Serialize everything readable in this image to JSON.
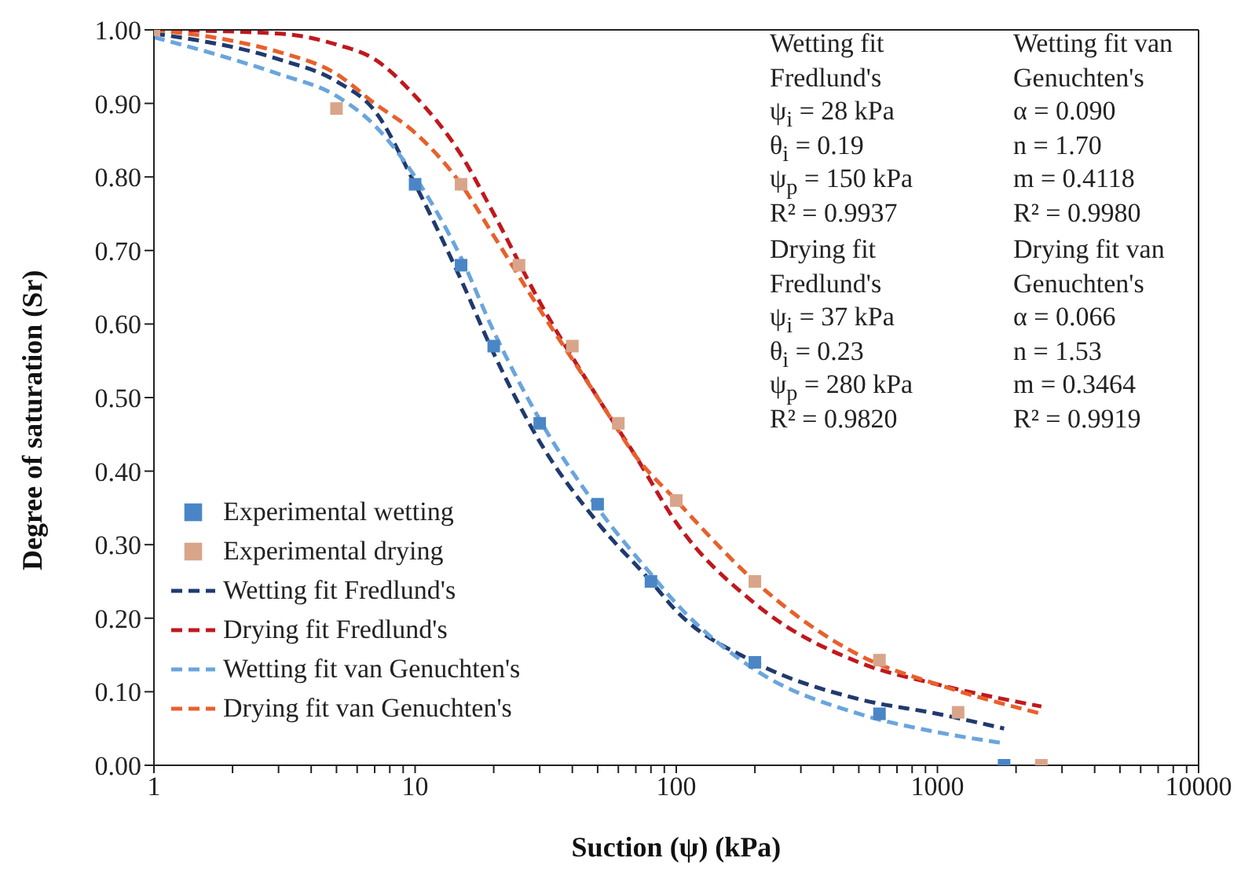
{
  "chart_data": {
    "type": "line",
    "xlabel": "Suction (ψ) (kPa)",
    "ylabel": "Degree of saturation (Sr)",
    "log": "x",
    "xlim": [
      1,
      10000
    ],
    "xticks": [
      1,
      {
        "value": 2,
        "label": null
      },
      {
        "value": 3,
        "label": null
      },
      {
        "value": 4,
        "label": null
      },
      {
        "value": 5,
        "label": null
      },
      {
        "value": 6,
        "label": null
      },
      {
        "value": 7,
        "label": null
      },
      {
        "value": 8,
        "label": null
      },
      {
        "value": 9,
        "label": null
      },
      10,
      {
        "value": 20,
        "label": null
      },
      {
        "value": 30,
        "label": null
      },
      {
        "value": 40,
        "label": null
      },
      {
        "value": 50,
        "label": null
      },
      {
        "value": 60,
        "label": null
      },
      {
        "value": 70,
        "label": null
      },
      {
        "value": 80,
        "label": null
      },
      {
        "value": 90,
        "label": null
      },
      100,
      {
        "value": 200,
        "label": null
      },
      {
        "value": 300,
        "label": null
      },
      {
        "value": 400,
        "label": null
      },
      {
        "value": 500,
        "label": null
      },
      {
        "value": 600,
        "label": null
      },
      {
        "value": 700,
        "label": null
      },
      {
        "value": 800,
        "label": null
      },
      {
        "value": 900,
        "label": null
      },
      1000,
      {
        "value": 2000,
        "label": null
      },
      {
        "value": 3000,
        "label": null
      },
      {
        "value": 4000,
        "label": null
      },
      {
        "value": 5000,
        "label": null
      },
      {
        "value": 6000,
        "label": null
      },
      {
        "value": 7000,
        "label": null
      },
      {
        "value": 8000,
        "label": null
      },
      {
        "value": 9000,
        "label": null
      },
      10000
    ],
    "ylim": [
      0,
      1
    ],
    "yticks": [
      {
        "value": 0,
        "label": "0.00"
      },
      {
        "value": 0.1,
        "label": "0.10"
      },
      {
        "value": 0.2,
        "label": "0.20"
      },
      {
        "value": 0.3,
        "label": "0.30"
      },
      {
        "value": 0.4,
        "label": "0.40"
      },
      {
        "value": 0.5,
        "label": "0.50"
      },
      {
        "value": 0.6,
        "label": "0.60"
      },
      {
        "value": 0.7,
        "label": "0.70"
      },
      {
        "value": 0.8,
        "label": "0.80"
      },
      {
        "value": 0.9,
        "label": "0.90"
      },
      {
        "value": 1,
        "label": "1.00"
      }
    ],
    "grid": false,
    "legend": "bottom left",
    "series": [
      {
        "name": "Experimental wetting",
        "type": "scatter",
        "marker": "square",
        "color": "#4a86c5",
        "x": [
          10,
          15,
          20,
          30,
          50,
          80,
          200,
          600,
          1800
        ],
        "values": [
          0.79,
          0.68,
          0.57,
          0.465,
          0.355,
          0.25,
          0.14,
          0.07,
          0.0
        ]
      },
      {
        "name": "Experimental drying",
        "type": "scatter",
        "marker": "square",
        "color": "#d9a58a",
        "x": [
          1,
          5,
          15,
          25,
          40,
          60,
          100,
          200,
          600,
          1200,
          2500
        ],
        "values": [
          1.0,
          0.893,
          0.79,
          0.68,
          0.57,
          0.465,
          0.36,
          0.25,
          0.143,
          0.072,
          0.0
        ]
      },
      {
        "name": "Wetting fit Fredlund's",
        "type": "line",
        "line_style": "dashed",
        "color": "#1f3a6e",
        "x": [
          1,
          3,
          5,
          7,
          10,
          15,
          20,
          30,
          50,
          80,
          100,
          200,
          500,
          1000,
          1800
        ],
        "values": [
          0.995,
          0.96,
          0.93,
          0.89,
          0.79,
          0.66,
          0.56,
          0.44,
          0.33,
          0.25,
          0.21,
          0.14,
          0.09,
          0.07,
          0.05
        ]
      },
      {
        "name": "Drying fit Fredlund's",
        "line_style": "dashed",
        "color": "#c0181e",
        "x": [
          1,
          3,
          5,
          7,
          10,
          15,
          20,
          30,
          50,
          70,
          100,
          200,
          500,
          1000,
          2500
        ],
        "values": [
          1.0,
          0.995,
          0.98,
          0.96,
          0.91,
          0.83,
          0.75,
          0.63,
          0.5,
          0.42,
          0.33,
          0.22,
          0.14,
          0.11,
          0.08
        ]
      },
      {
        "name": "Wetting fit van Genuchten's",
        "line_style": "dashed",
        "color": "#6aa5dc",
        "x": [
          1,
          2,
          3,
          5,
          7,
          10,
          15,
          20,
          30,
          50,
          80,
          100,
          200,
          500,
          1000,
          1800
        ],
        "values": [
          0.99,
          0.96,
          0.94,
          0.91,
          0.87,
          0.8,
          0.69,
          0.59,
          0.47,
          0.35,
          0.26,
          0.22,
          0.13,
          0.07,
          0.045,
          0.03
        ]
      },
      {
        "name": "Drying fit van Genuchten's",
        "line_style": "dashed",
        "color": "#e8602c",
        "x": [
          1,
          2,
          3,
          5,
          7,
          10,
          15,
          20,
          30,
          50,
          70,
          100,
          200,
          500,
          1000,
          2500
        ],
        "values": [
          1.0,
          0.985,
          0.97,
          0.94,
          0.9,
          0.86,
          0.79,
          0.72,
          0.62,
          0.5,
          0.42,
          0.36,
          0.25,
          0.15,
          0.11,
          0.07
        ]
      }
    ],
    "annotations": [
      "Wetting fit",
      "Fredlund's",
      "ψ$_{i}$ = 28 kPa",
      "θ$_{i}$ = 0.19",
      "ψ$_{p}$ = 150 kPa",
      "R² = 0.9937",
      "Wetting fit van",
      "Genuchten's",
      "α = 0.090",
      "n = 1.70",
      "m = 0.4118",
      "R² = 0.9980",
      "Drying fit",
      "Fredlund's",
      "ψ$_{i}$ = 37 kPa",
      "θ$_{i}$ = 0.23",
      "ψ$_{p}$ = 280 kPa",
      "R² = 0.9820",
      "Drying fit van",
      "Genuchten's",
      "α = 0.066",
      "n = 1.53",
      "m = 0.3464",
      "R² = 0.9919"
    ]
  }
}
